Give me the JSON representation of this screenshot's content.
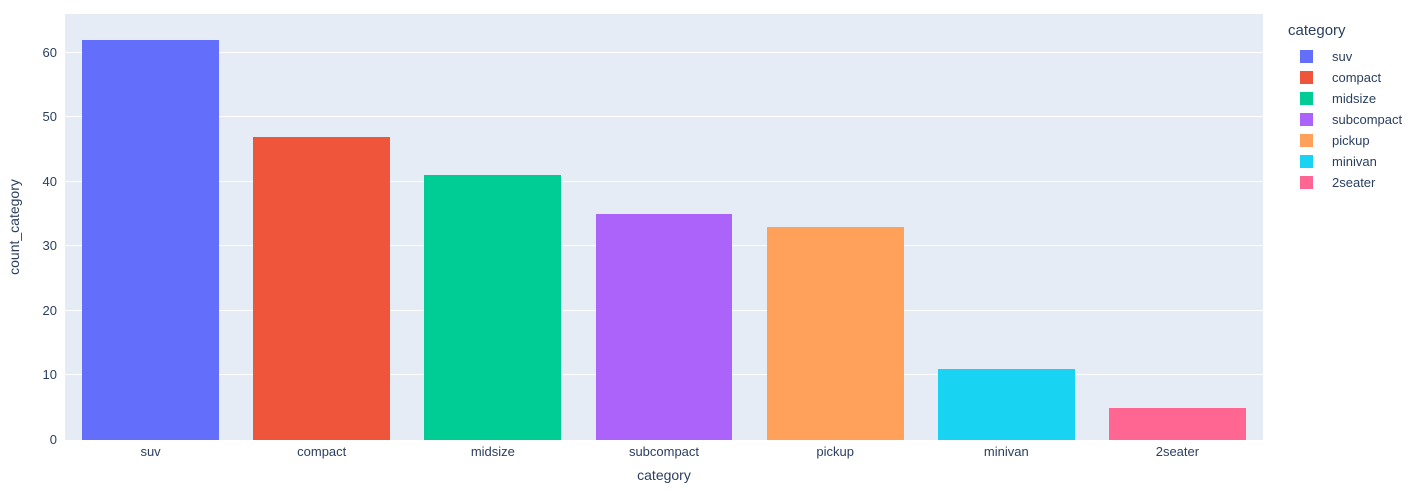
{
  "figure": {
    "background_color": "#ffffff",
    "plot_background_color": "#E5ECF6",
    "grid_color": "#ffffff",
    "text_color": "#2a3f5f"
  },
  "chart_data": {
    "type": "bar",
    "title": "",
    "xlabel": "category",
    "ylabel": "count_category",
    "categories": [
      "suv",
      "compact",
      "midsize",
      "subcompact",
      "pickup",
      "minivan",
      "2seater"
    ],
    "values": [
      62,
      47,
      41,
      35,
      33,
      11,
      5
    ],
    "colors": [
      "#636EFA",
      "#EF553B",
      "#00CC96",
      "#AB63FA",
      "#FFA15A",
      "#19D3F3",
      "#FF6692"
    ],
    "ylim": [
      0,
      66
    ],
    "yticks": [
      0,
      10,
      20,
      30,
      40,
      50,
      60
    ],
    "grid": true,
    "bar_width_fraction": 0.8,
    "legend": {
      "title": "category",
      "position": "right",
      "entries": [
        {
          "label": "suv",
          "color": "#636EFA"
        },
        {
          "label": "compact",
          "color": "#EF553B"
        },
        {
          "label": "midsize",
          "color": "#00CC96"
        },
        {
          "label": "subcompact",
          "color": "#AB63FA"
        },
        {
          "label": "pickup",
          "color": "#FFA15A"
        },
        {
          "label": "minivan",
          "color": "#19D3F3"
        },
        {
          "label": "2seater",
          "color": "#FF6692"
        }
      ]
    }
  }
}
